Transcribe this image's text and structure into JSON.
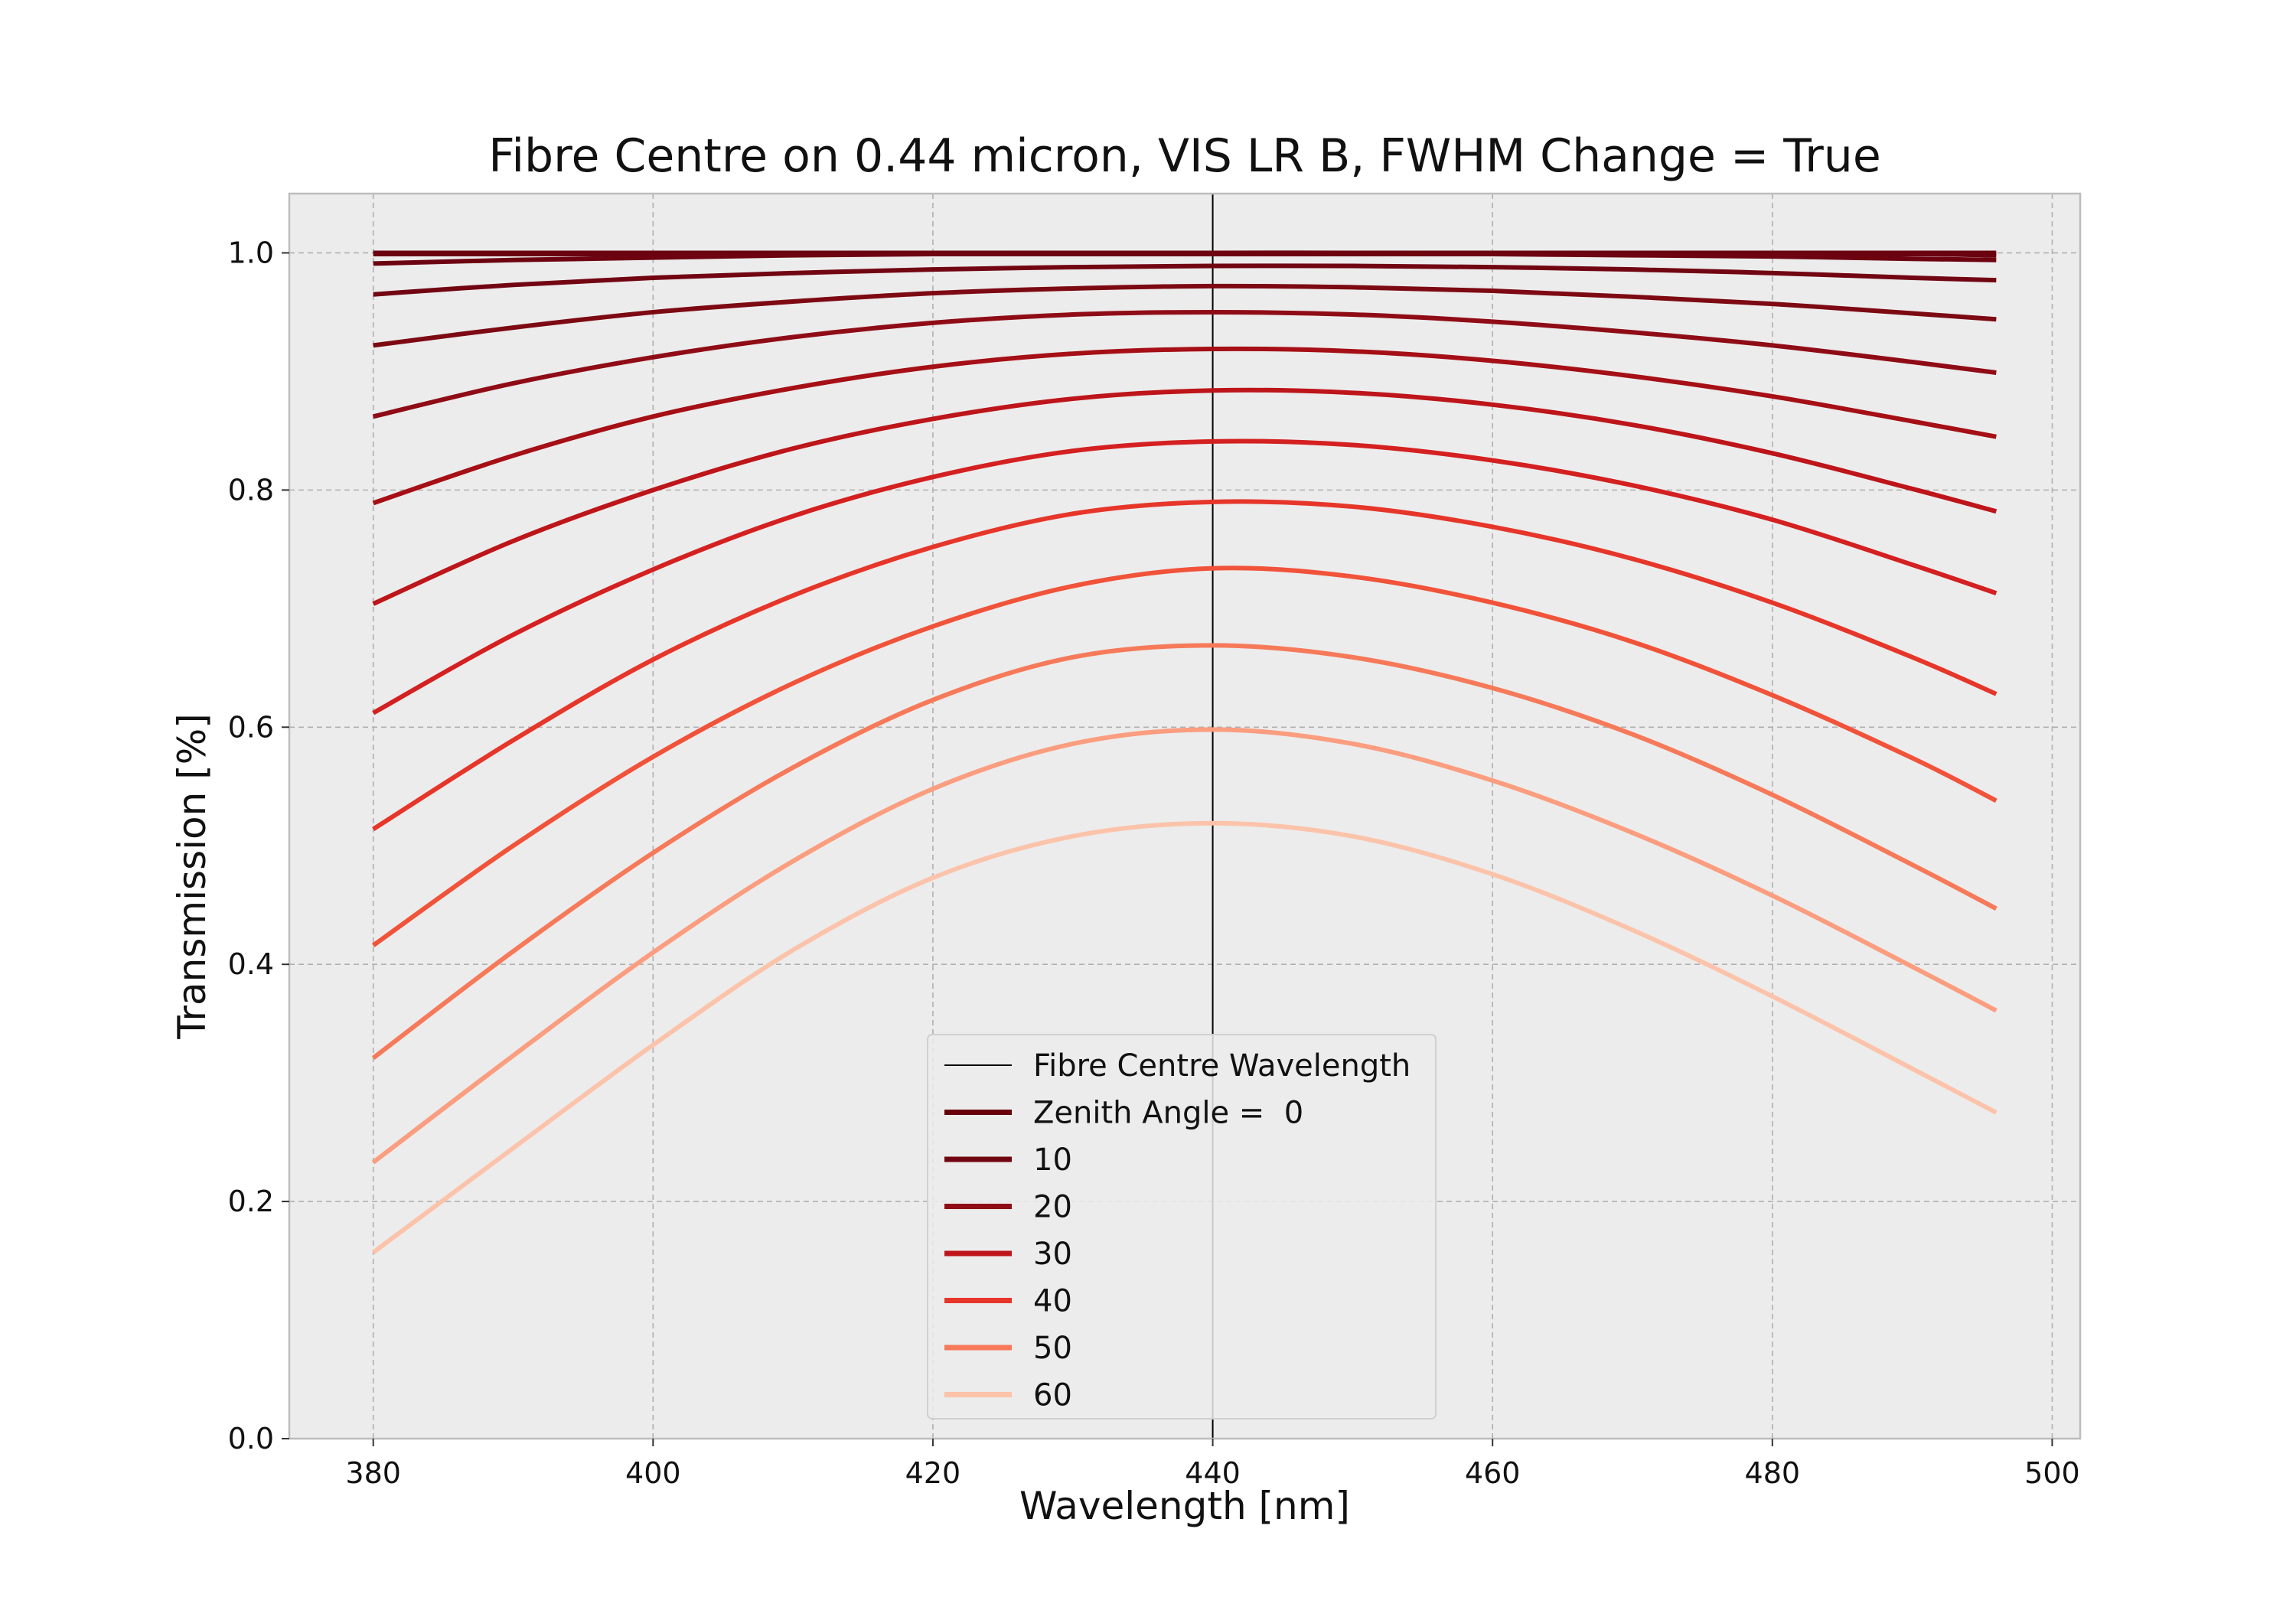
{
  "chart_data": {
    "type": "line",
    "title": "Fibre Centre on 0.44 micron, VIS LR B, FWHM Change = True",
    "xlabel": "Wavelength [nm]",
    "ylabel": "Transmission [%]",
    "xlim": [
      374,
      502
    ],
    "ylim": [
      0.0,
      1.05
    ],
    "x_ticks": [
      380,
      400,
      420,
      440,
      460,
      480,
      500
    ],
    "y_ticks": [
      0.0,
      0.2,
      0.4,
      0.6,
      0.8,
      1.0
    ],
    "x_tick_labels": [
      "380",
      "400",
      "420",
      "440",
      "460",
      "480",
      "500"
    ],
    "y_tick_labels": [
      "0.0",
      "0.2",
      "0.4",
      "0.6",
      "0.8",
      "1.0"
    ],
    "grid": true,
    "legend_position": "lower center",
    "x": [
      380,
      390,
      400,
      410,
      420,
      430,
      440,
      450,
      460,
      470,
      480,
      490,
      496
    ],
    "reference_line": {
      "name": "Fibre Centre Wavelength",
      "x": 440,
      "color": "#000000"
    },
    "legend_labels": [
      "Fibre Centre Wavelength",
      "Zenith Angle =  0",
      "10",
      "20",
      "30",
      "40",
      "50",
      "60"
    ],
    "series": [
      {
        "name": "Zenith Angle =  0",
        "color": "#67000d",
        "values": [
          1.0,
          1.0,
          1.0,
          1.0,
          1.0,
          1.0,
          1.0,
          1.0,
          1.0,
          1.0,
          1.0,
          1.0,
          1.0
        ]
      },
      {
        "color": "#6a020f",
        "values": [
          0.999,
          0.999,
          0.999,
          0.999,
          0.999,
          0.999,
          0.999,
          0.999,
          0.999,
          0.999,
          0.999,
          0.999,
          0.998
        ]
      },
      {
        "color": "#6d0310",
        "values": [
          0.991,
          0.994,
          0.996,
          0.998,
          0.999,
          1.0,
          1.0,
          1.0,
          0.999,
          0.998,
          0.997,
          0.995,
          0.994
        ]
      },
      {
        "name": "10",
        "color": "#720512",
        "values": [
          0.965,
          0.973,
          0.979,
          0.983,
          0.986,
          0.988,
          0.989,
          0.989,
          0.988,
          0.986,
          0.983,
          0.979,
          0.977
        ]
      },
      {
        "color": "#7d0913",
        "values": [
          0.922,
          0.937,
          0.95,
          0.959,
          0.966,
          0.97,
          0.972,
          0.971,
          0.968,
          0.963,
          0.957,
          0.949,
          0.944
        ]
      },
      {
        "name": "20",
        "color": "#8f0c16",
        "values": [
          0.862,
          0.89,
          0.912,
          0.929,
          0.941,
          0.948,
          0.95,
          0.948,
          0.942,
          0.933,
          0.922,
          0.908,
          0.899
        ]
      },
      {
        "color": "#a50f15",
        "values": [
          0.789,
          0.829,
          0.862,
          0.886,
          0.904,
          0.915,
          0.919,
          0.917,
          0.909,
          0.896,
          0.879,
          0.858,
          0.845
        ]
      },
      {
        "name": "30",
        "color": "#bd151a",
        "values": [
          0.704,
          0.757,
          0.8,
          0.835,
          0.86,
          0.877,
          0.884,
          0.882,
          0.872,
          0.855,
          0.831,
          0.801,
          0.782
        ]
      },
      {
        "color": "#d42020",
        "values": [
          0.612,
          0.678,
          0.733,
          0.778,
          0.811,
          0.833,
          0.841,
          0.838,
          0.825,
          0.804,
          0.775,
          0.737,
          0.713
        ]
      },
      {
        "name": "40",
        "color": "#e6362a",
        "values": [
          0.514,
          0.589,
          0.657,
          0.711,
          0.752,
          0.78,
          0.79,
          0.786,
          0.769,
          0.742,
          0.705,
          0.659,
          0.628
        ]
      },
      {
        "color": "#f1533a",
        "values": [
          0.416,
          0.5,
          0.575,
          0.637,
          0.685,
          0.719,
          0.734,
          0.727,
          0.705,
          0.672,
          0.627,
          0.574,
          0.538
        ]
      },
      {
        "name": "50",
        "color": "#f67a5a",
        "values": [
          0.321,
          0.411,
          0.494,
          0.566,
          0.623,
          0.659,
          0.669,
          0.659,
          0.633,
          0.594,
          0.543,
          0.484,
          0.447
        ]
      },
      {
        "color": "#fb9d7f",
        "values": [
          0.233,
          0.323,
          0.41,
          0.487,
          0.548,
          0.586,
          0.598,
          0.586,
          0.555,
          0.511,
          0.458,
          0.398,
          0.361
        ]
      },
      {
        "name": "60",
        "color": "#fcc3ab",
        "values": [
          0.157,
          0.245,
          0.332,
          0.412,
          0.473,
          0.508,
          0.519,
          0.508,
          0.476,
          0.429,
          0.373,
          0.312,
          0.275
        ]
      }
    ]
  },
  "colors": {
    "plot_background": "#ececec",
    "grid": "#b0b0b0",
    "axes_frame": "#bdbdbd"
  }
}
